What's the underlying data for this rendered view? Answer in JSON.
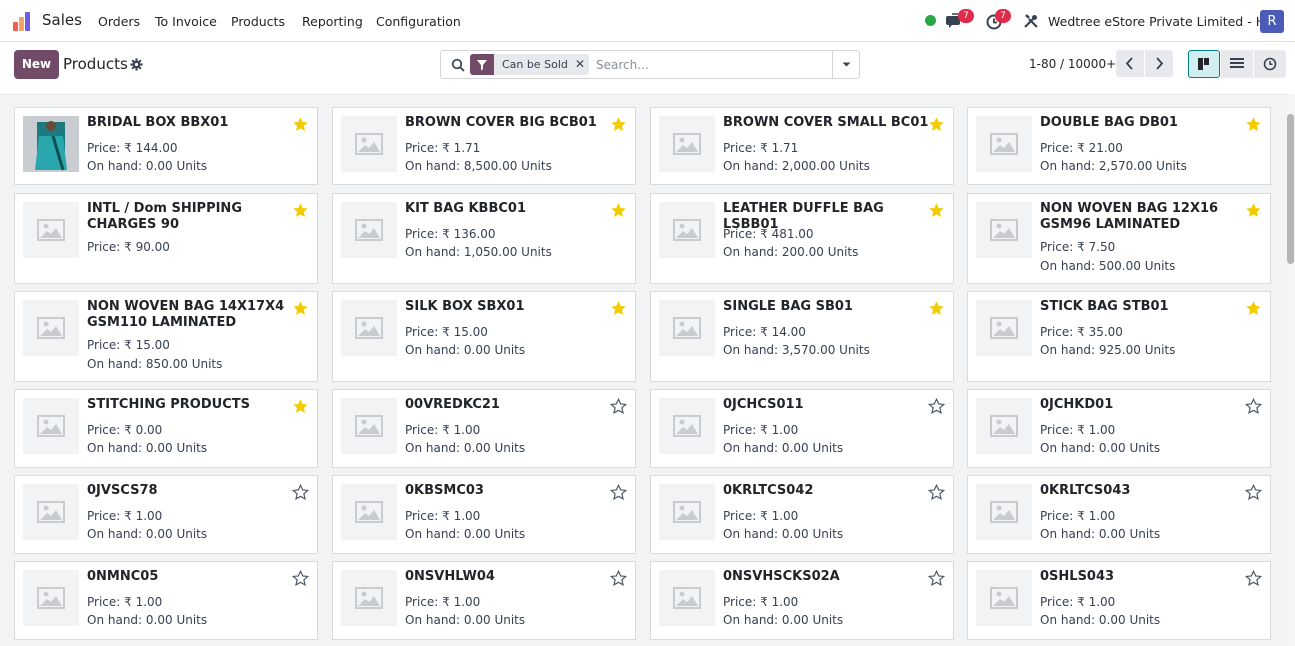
{
  "app": {
    "name": "Sales",
    "menu": [
      "Orders",
      "To Invoice",
      "Products",
      "Reporting",
      "Configuration"
    ],
    "messages_count": "7",
    "activities_count": "7",
    "company": "Wedtree eStore Private Limited - HO",
    "avatar_letter": "R"
  },
  "control": {
    "new_label": "New",
    "title": "Products",
    "filter_facet": "Can be Sold",
    "search_placeholder": "Search...",
    "pager": "1-80 / 10000+"
  },
  "products": [
    {
      "name": "BRIDAL BOX BBX01",
      "price": "Price: ₹ 144.00",
      "onhand": "On hand: 0.00 Units",
      "fav": true,
      "photo": true
    },
    {
      "name": "BROWN COVER BIG BCB01",
      "price": "Price: ₹ 1.71",
      "onhand": "On hand: 8,500.00 Units",
      "fav": true
    },
    {
      "name": "BROWN COVER SMALL BC01",
      "price": "Price: ₹ 1.71",
      "onhand": "On hand: 2,000.00 Units",
      "fav": true
    },
    {
      "name": "DOUBLE BAG DB01",
      "price": "Price: ₹ 21.00",
      "onhand": "On hand: 2,570.00 Units",
      "fav": true
    },
    {
      "name": "INTL / Dom SHIPPING CHARGES 90",
      "price": "Price: ₹ 90.00",
      "onhand": "",
      "fav": true
    },
    {
      "name": "KIT BAG KBBC01",
      "price": "Price: ₹ 136.00",
      "onhand": "On hand: 1,050.00 Units",
      "fav": true
    },
    {
      "name": "LEATHER DUFFLE BAG LSBB01",
      "price": "Price: ₹ 481.00",
      "onhand": "On hand: 200.00 Units",
      "fav": true
    },
    {
      "name": "NON WOVEN BAG 12X16 GSM96 LAMINATED",
      "price": "Price: ₹ 7.50",
      "onhand": "On hand: 500.00 Units",
      "fav": true
    },
    {
      "name": "NON WOVEN BAG 14X17X4 GSM110 LAMINATED",
      "price": "Price: ₹ 15.00",
      "onhand": "On hand: 850.00 Units",
      "fav": true
    },
    {
      "name": "SILK BOX SBX01",
      "price": "Price: ₹ 15.00",
      "onhand": "On hand: 0.00 Units",
      "fav": true
    },
    {
      "name": "SINGLE BAG SB01",
      "price": "Price: ₹ 14.00",
      "onhand": "On hand: 3,570.00 Units",
      "fav": true
    },
    {
      "name": "STICK BAG STB01",
      "price": "Price: ₹ 35.00",
      "onhand": "On hand: 925.00 Units",
      "fav": true
    },
    {
      "name": "STITCHING PRODUCTS",
      "price": "Price: ₹ 0.00",
      "onhand": "On hand: 0.00 Units",
      "fav": true
    },
    {
      "name": "00VREDKC21",
      "price": "Price: ₹ 1.00",
      "onhand": "On hand: 0.00 Units",
      "fav": false
    },
    {
      "name": "0JCHCS011",
      "price": "Price: ₹ 1.00",
      "onhand": "On hand: 0.00 Units",
      "fav": false
    },
    {
      "name": "0JCHKD01",
      "price": "Price: ₹ 1.00",
      "onhand": "On hand: 0.00 Units",
      "fav": false
    },
    {
      "name": "0JVSCS78",
      "price": "Price: ₹ 1.00",
      "onhand": "On hand: 0.00 Units",
      "fav": false
    },
    {
      "name": "0KBSMC03",
      "price": "Price: ₹ 1.00",
      "onhand": "On hand: 0.00 Units",
      "fav": false
    },
    {
      "name": "0KRLTCS042",
      "price": "Price: ₹ 1.00",
      "onhand": "On hand: 0.00 Units",
      "fav": false
    },
    {
      "name": "0KRLTCS043",
      "price": "Price: ₹ 1.00",
      "onhand": "On hand: 0.00 Units",
      "fav": false
    },
    {
      "name": "0NMNC05",
      "price": "Price: ₹ 1.00",
      "onhand": "On hand: 0.00 Units",
      "fav": false
    },
    {
      "name": "0NSVHLW04",
      "price": "Price: ₹ 1.00",
      "onhand": "On hand: 0.00 Units",
      "fav": false
    },
    {
      "name": "0NSVHSCKS02A",
      "price": "Price: ₹ 1.00",
      "onhand": "On hand: 0.00 Units",
      "fav": false
    },
    {
      "name": "0SHLS043",
      "price": "Price: ₹ 1.00",
      "onhand": "On hand: 0.00 Units",
      "fav": false
    }
  ],
  "colors": {
    "brand": "#714b67",
    "star_on": "#f3cc00",
    "accent": "#017e84",
    "badge": "#e02b4a",
    "status": "#28a745"
  }
}
